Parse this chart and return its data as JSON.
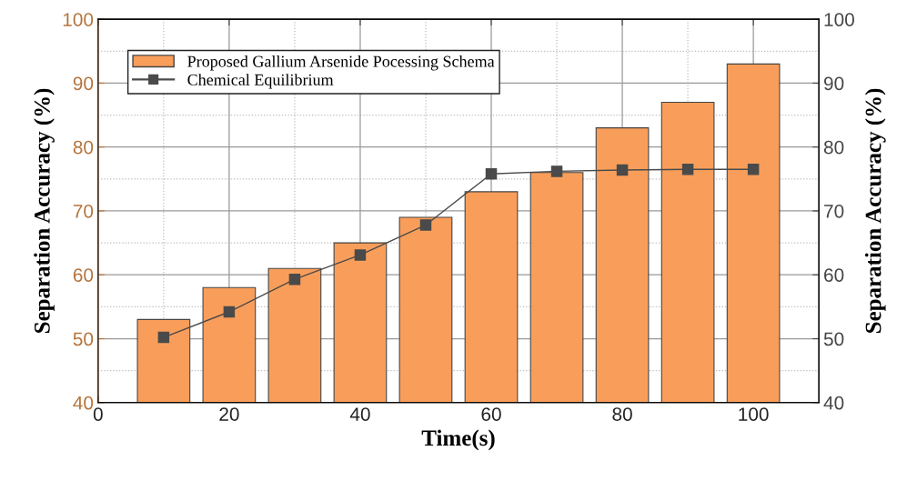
{
  "chart_data": {
    "type": "bar",
    "xlabel": "Time(s)",
    "ylabel": "Separation Accuracy (%)",
    "y2label": "Separation Accuracy (%)",
    "x": [
      10,
      20,
      30,
      40,
      50,
      60,
      70,
      80,
      90,
      100
    ],
    "series": [
      {
        "name": "Proposed Gallium Arsenide Pocessing Schema",
        "color": "#f99e5a",
        "values": [
          53,
          58,
          61,
          65,
          69,
          73,
          76,
          83,
          87,
          93
        ]
      },
      {
        "name": "Chemical Equilibrium",
        "type": "line",
        "color": "#4a4a4a",
        "marker": "square",
        "line_style": "solid",
        "values": [
          50.2,
          54.2,
          59.3,
          63.1,
          67.8,
          75.8,
          76.2,
          76.4,
          76.5,
          76.5
        ]
      }
    ],
    "xlim": [
      0,
      110
    ],
    "xticks": [
      0,
      20,
      40,
      60,
      80,
      100
    ],
    "ylim": [
      40,
      100
    ],
    "yticks": [
      40,
      50,
      60,
      70,
      80,
      90,
      100
    ],
    "y2lim": [
      40,
      100
    ],
    "y2ticks": [
      40,
      50,
      60,
      70,
      80,
      90,
      100
    ],
    "grid": true,
    "legend": "top left"
  }
}
